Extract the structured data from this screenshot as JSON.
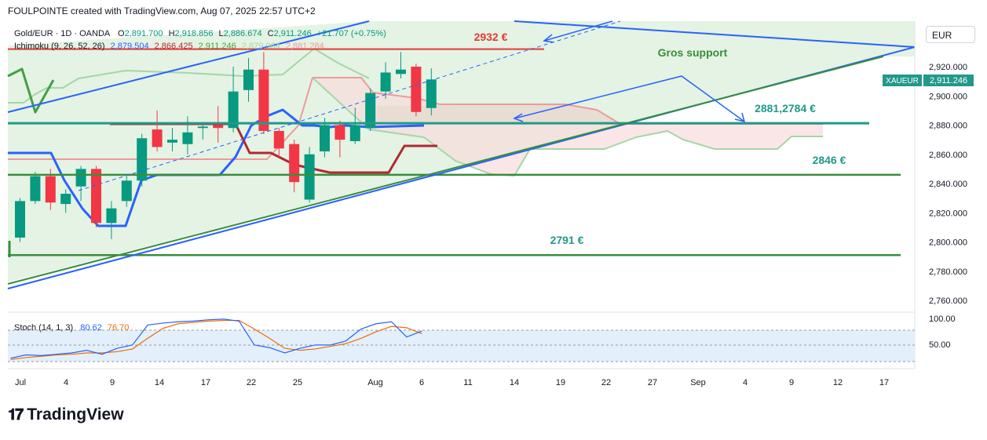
{
  "header": {
    "text": "FOULPOINTE created with TradingView.com, Aug 07, 2025 22:57 UTC+2"
  },
  "legend": {
    "symbol": "Gold/EUR · 1D · OANDA",
    "open_label": "O",
    "open": "2,891.700",
    "high_label": "H",
    "high": "2,918.856",
    "low_label": "L",
    "low": "2,886.674",
    "close_label": "C",
    "close": "2,911.246",
    "change": "+21.707 (+0.75%)",
    "ichimoku_label": "Ichimoku (9, 26, 52, 26)",
    "ichimoku_values": [
      "2,879.504",
      "2,866.425",
      "2,911.246",
      "2,879.964",
      "2,881.284"
    ],
    "ichimoku_colors": [
      "#2962ff",
      "#b22833",
      "#43a047",
      "#a5d6a7",
      "#ef9a9a"
    ],
    "stoch_label": "Stoch (14, 1, 3)",
    "stoch_k": "80.62",
    "stoch_d": "76.70"
  },
  "currency_button": "EUR",
  "price_tag": {
    "symbol": "XAUEUR",
    "price": "2,911.246"
  },
  "annotations": {
    "resistance": "2932 €",
    "gros_support": "Gros support",
    "level_2881": "2881,2784 €",
    "level_2846": "2846 €",
    "level_2791": "2791 €"
  },
  "branding": {
    "name": "TradingView"
  },
  "colors": {
    "up": "#089981",
    "down": "#f23645",
    "tenkan": "#2962ff",
    "kijun": "#b22833",
    "chikou": "#43a047",
    "span_a": "#a5d6a7",
    "span_b": "#ef9a9a",
    "trend": "#2962ff",
    "support": "#388e3c",
    "resistance": "#e53935",
    "teal": "#22998a"
  },
  "chart_data": {
    "type": "candlestick",
    "title": "Gold/EUR · 1D · OANDA",
    "ylim": [
      2752,
      2940
    ],
    "y_ticks": [
      2760,
      2780,
      2800,
      2820,
      2840,
      2860,
      2880,
      2900,
      2920
    ],
    "y_tick_labels": [
      "2,760.000",
      "2,780.000",
      "2,800.000",
      "2,820.000",
      "2,840.000",
      "2,860.000",
      "2,880.000",
      "2,900.000",
      "2,920.000"
    ],
    "x_tick_labels": [
      "Jul",
      "4",
      "9",
      "14",
      "17",
      "22",
      "25",
      "Aug",
      "6",
      "11",
      "14",
      "19",
      "22",
      "27",
      "Sep",
      "4",
      "9",
      "12",
      "17"
    ],
    "candles": [
      {
        "o": 2803,
        "h": 2830,
        "l": 2800,
        "c": 2828
      },
      {
        "o": 2828,
        "h": 2848,
        "l": 2826,
        "c": 2845
      },
      {
        "o": 2845,
        "h": 2850,
        "l": 2822,
        "c": 2827
      },
      {
        "o": 2826,
        "h": 2836,
        "l": 2820,
        "c": 2833
      },
      {
        "o": 2838,
        "h": 2852,
        "l": 2828,
        "c": 2850
      },
      {
        "o": 2850,
        "h": 2852,
        "l": 2810,
        "c": 2813
      },
      {
        "o": 2813,
        "h": 2828,
        "l": 2802,
        "c": 2823
      },
      {
        "o": 2828,
        "h": 2845,
        "l": 2824,
        "c": 2842
      },
      {
        "o": 2842,
        "h": 2874,
        "l": 2838,
        "c": 2871
      },
      {
        "o": 2877,
        "h": 2890,
        "l": 2862,
        "c": 2865
      },
      {
        "o": 2868,
        "h": 2878,
        "l": 2862,
        "c": 2870
      },
      {
        "o": 2867,
        "h": 2886,
        "l": 2860,
        "c": 2875
      },
      {
        "o": 2878,
        "h": 2882,
        "l": 2870,
        "c": 2879
      },
      {
        "o": 2880,
        "h": 2893,
        "l": 2868,
        "c": 2878
      },
      {
        "o": 2878,
        "h": 2920,
        "l": 2875,
        "c": 2903
      },
      {
        "o": 2904,
        "h": 2926,
        "l": 2896,
        "c": 2918
      },
      {
        "o": 2918,
        "h": 2930,
        "l": 2874,
        "c": 2876
      },
      {
        "o": 2876,
        "h": 2878,
        "l": 2858,
        "c": 2864
      },
      {
        "o": 2867,
        "h": 2870,
        "l": 2834,
        "c": 2841
      },
      {
        "o": 2829,
        "h": 2865,
        "l": 2827,
        "c": 2860
      },
      {
        "o": 2862,
        "h": 2885,
        "l": 2858,
        "c": 2880
      },
      {
        "o": 2880,
        "h": 2883,
        "l": 2858,
        "c": 2870
      },
      {
        "o": 2869,
        "h": 2892,
        "l": 2867,
        "c": 2880
      },
      {
        "o": 2878,
        "h": 2905,
        "l": 2876,
        "c": 2902
      },
      {
        "o": 2903,
        "h": 2923,
        "l": 2898,
        "c": 2916
      },
      {
        "o": 2915,
        "h": 2930,
        "l": 2912,
        "c": 2918
      },
      {
        "o": 2920,
        "h": 2922,
        "l": 2886,
        "c": 2889
      },
      {
        "o": 2891.7,
        "h": 2918.856,
        "l": 2886.674,
        "c": 2911.246
      }
    ],
    "stoch_ylim": [
      35,
      105
    ],
    "stoch_ticks": [
      50,
      100
    ],
    "stoch_tick_labels": [
      "50.00",
      "100.00"
    ],
    "stoch_k": [
      40,
      45,
      44,
      46,
      48,
      52,
      46,
      55,
      60,
      90,
      93,
      95,
      96,
      98,
      99,
      96,
      60,
      56,
      48,
      55,
      60,
      60,
      66,
      84,
      92,
      95,
      72,
      81
    ],
    "stoch_d": [
      38,
      41,
      43,
      45,
      46,
      48,
      48,
      50,
      54,
      70,
      85,
      92,
      94,
      96,
      97,
      97,
      84,
      70,
      55,
      52,
      54,
      58,
      62,
      70,
      80,
      88,
      86,
      77
    ],
    "horizontal_levels": [
      2932,
      2881.2784,
      2846,
      2791
    ]
  }
}
